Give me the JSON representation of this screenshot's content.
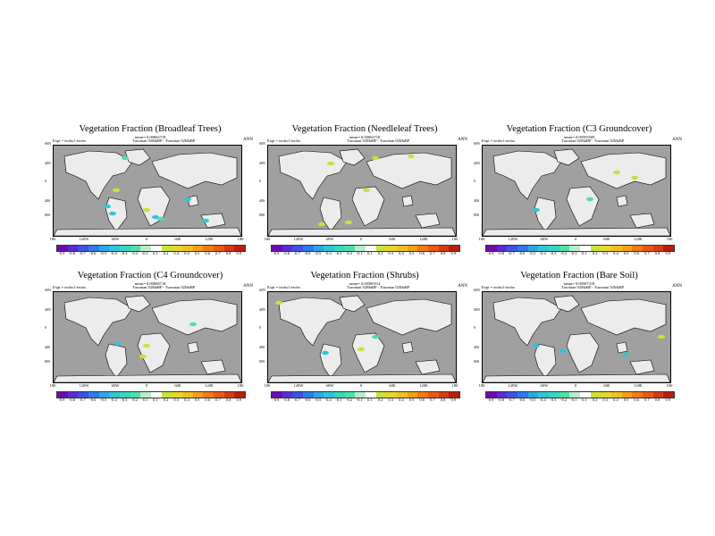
{
  "season": "ANN",
  "experiment_label": "Expt = teohx1-teohx",
  "period_label": "Turonian 92MaBP - Turonian 92MaBP",
  "panels": [
    {
      "title": "Vegetation Fraction (Broadleaf Trees)",
      "mean": "mean= 0.00062718"
    },
    {
      "title": "Vegetation Fraction (Needleleaf Trees)",
      "mean": "mean= 0.00062718"
    },
    {
      "title": "Vegetation Fraction (C3 Groundcover)",
      "mean": "mean= 0.00593509"
    },
    {
      "title": "Vegetation Fraction (C4 Groundcover)",
      "mean": "mean= 0.00068718"
    },
    {
      "title": "Vegetation Fraction (Shrubs)",
      "mean": "mean= 0.00589314"
    },
    {
      "title": "Vegetation Fraction (Bare Soil)",
      "mean": "mean= 0.00587318"
    }
  ],
  "lon_labels": [
    "180",
    "120W",
    "60W",
    "0",
    "60E",
    "120E",
    "180"
  ],
  "lat_labels": [
    "60N",
    "40N",
    "0",
    "40S",
    "80S"
  ],
  "colorbar_labels": [
    "-0.9",
    "-0.8",
    "-0.7",
    "-0.6",
    "-0.5",
    "-0.4",
    "-0.3",
    "-0.2",
    "-0.1",
    "0.1",
    "0.2",
    "0.3",
    "0.4",
    "0.5",
    "0.6",
    "0.7",
    "0.8",
    "0.9"
  ],
  "colorbar_colors": [
    "#6a0dad",
    "#5b2bd6",
    "#3f51e0",
    "#2f7ae8",
    "#2ea6e6",
    "#33c3d8",
    "#38d6c0",
    "#4fe0a8",
    "#b8ecc8",
    "#ffffff",
    "#c8e23a",
    "#e6d82a",
    "#f0c020",
    "#f4a018",
    "#f07a14",
    "#e85a12",
    "#d83a10",
    "#b81e0c"
  ],
  "colors": {
    "ocean": "#a0a0a0",
    "land": "#ececec",
    "coast": "#000000"
  }
}
